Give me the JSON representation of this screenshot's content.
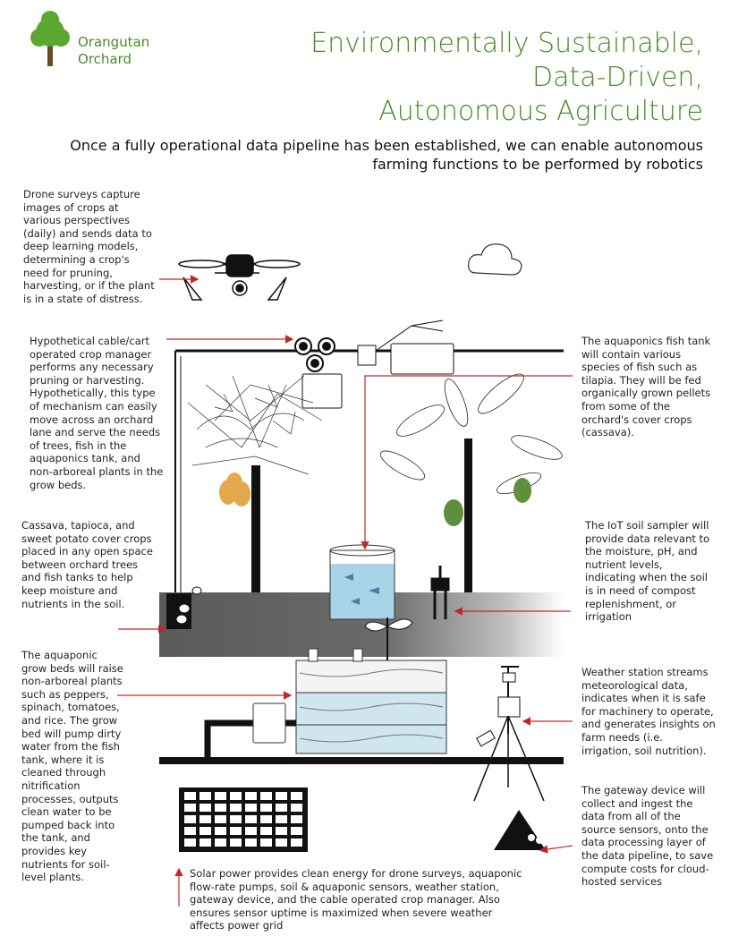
{
  "brand": {
    "line1": "Orangutan",
    "line2": "Orchard"
  },
  "title": {
    "line1": "Environmentally Sustainable,",
    "line2": "Data-Driven,",
    "line3": "Autonomous Agriculture"
  },
  "subtitle": "Once a fully operational data pipeline has been established, we can enable autonomous farming functions to be performed by robotics",
  "annotations": {
    "drone": "Drone surveys capture images of crops at various perspectives (daily) and sends data to deep learning models, determining a crop's need for pruning, harvesting, or if the plant is in a state of distress.",
    "cable": "Hypothetical cable/cart operated crop manager performs any necessary pruning or harvesting. Hypothetically, this type of mechanism can easily move across an orchard lane and serve the needs of trees, fish in the aquaponics tank, and non-arboreal plants in the grow beds.",
    "fish_tank": "The aquaponics fish tank will contain various species of fish such as tilapia. They will be fed organically grown pellets from some of the orchard's cover crops (cassava).",
    "cover_crops": "Cassava, tapioca, and sweet potato cover crops placed in any open space between orchard trees and fish tanks to help keep moisture and nutrients in the soil.",
    "soil_sampler": "The IoT soil sampler will provide data relevant to the moisture, pH, and nutrient levels, indicating when the soil is in need of compost replenishment, or irrigation",
    "grow_beds": "The aquaponic grow beds will raise non-arboreal plants such as peppers, spinach, tomatoes, and rice. The grow bed will pump dirty water from the fish tank, where it is cleaned through nitrification processes, outputs clean water to be pumped back into the tank, and provides key nutrients for soil-level plants.",
    "weather": "Weather station streams meteorological data, indicates when it is safe for machinery to operate, and generates insights on farm needs (i.e. irrigation, soil nutrition).",
    "gateway": "The gateway device will collect and ingest the data from all of the source sensors, onto the data processing layer of the data pipeline, to save compute costs for cloud-hosted services",
    "solar": "Solar power provides clean energy for drone surveys, aquaponic flow-rate pumps, soil & aquaponic sensors, weather station, gateway device, and the cable operated crop manager. Also ensures sensor uptime is maximized when severe weather affects power grid"
  },
  "colors": {
    "brand_green": "#4a8a2a",
    "tree_green": "#5aa832",
    "arrow_red": "#c0282a",
    "soil_gray": "#555555",
    "water_blue": "#a9d4e8",
    "mango_orange": "#e2a849",
    "avocado_green": "#5e8f3c"
  },
  "icons": [
    "tree-logo-icon",
    "drone-icon",
    "cloud-icon",
    "solar-panel-icon",
    "gateway-device-icon",
    "weather-station-icon",
    "soil-sampler-icon"
  ]
}
